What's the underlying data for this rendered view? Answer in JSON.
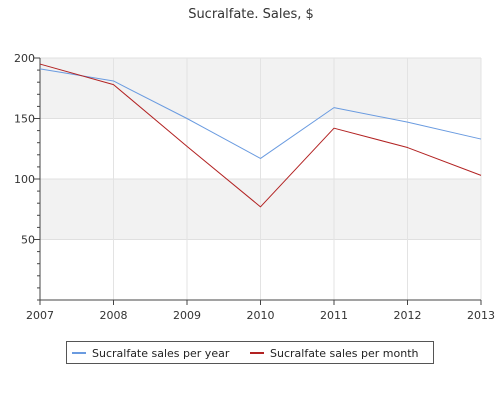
{
  "chart_data": {
    "type": "line",
    "title": "Sucralfate. Sales, $",
    "xlabel": "",
    "ylabel": "",
    "x": [
      "2007",
      "2008",
      "2009",
      "2010",
      "2011",
      "2012",
      "2013"
    ],
    "ylim": [
      0,
      200
    ],
    "yticks": [
      50,
      100,
      150,
      200
    ],
    "grid": true,
    "legend_position": "bottom",
    "series": [
      {
        "name": "Sucralfate sales per year",
        "color": "#6a9be0",
        "values": [
          191,
          181,
          150,
          117,
          159,
          147,
          133
        ]
      },
      {
        "name": "Sucralfate sales per month",
        "color": "#b22222",
        "values": [
          195,
          178,
          127,
          77,
          142,
          126,
          103
        ]
      }
    ]
  }
}
